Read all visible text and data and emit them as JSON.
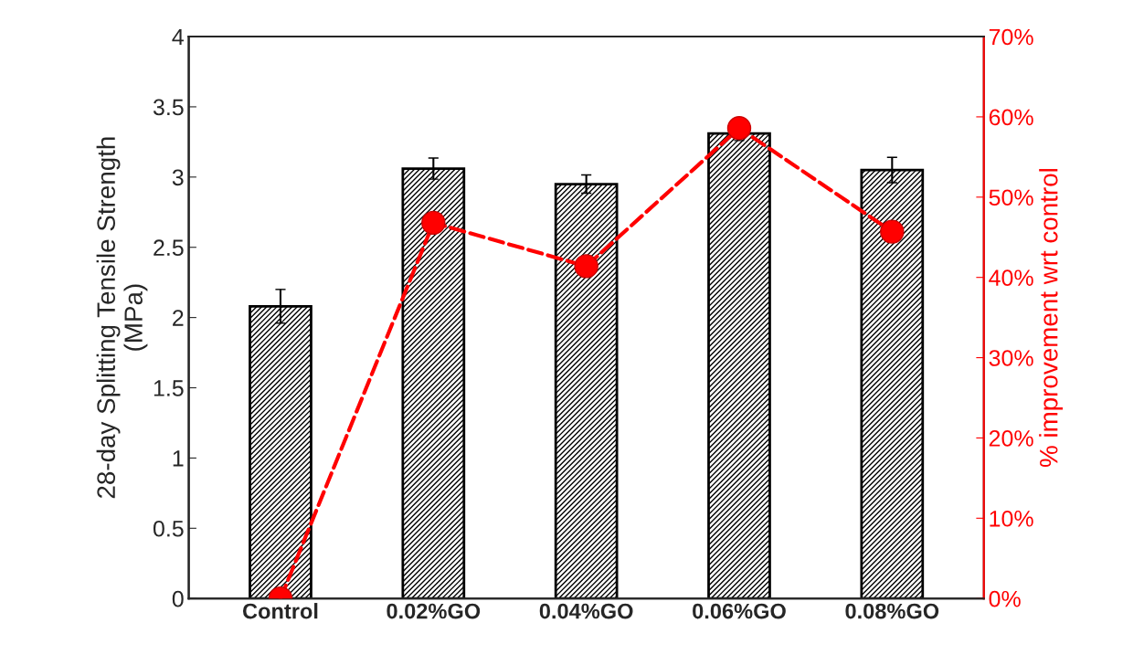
{
  "chart_data": {
    "type": "bar",
    "categories": [
      "Control",
      "0.02%GO",
      "0.04%GO",
      "0.06%GO",
      "0.08%GO"
    ],
    "ylabel": "28-day Splitting Tensile Strength\n(MPa)",
    "y2label": "% improvement wrt control",
    "ylim": [
      0,
      4
    ],
    "yticks": [
      0,
      0.5,
      1,
      1.5,
      2,
      2.5,
      3,
      3.5,
      4
    ],
    "y2lim": [
      0,
      70
    ],
    "y2ticks": [
      {
        "value": 0,
        "label": "0%"
      },
      {
        "value": 10,
        "label": "10%"
      },
      {
        "value": 20,
        "label": "20%"
      },
      {
        "value": 30,
        "label": "30%"
      },
      {
        "value": 40,
        "label": "40%"
      },
      {
        "value": 50,
        "label": "50%"
      },
      {
        "value": 60,
        "label": "60%"
      },
      {
        "value": 70,
        "label": "70%"
      }
    ],
    "grid": false,
    "legend": false,
    "series": [
      {
        "type": "bar",
        "color": "#000000",
        "values": [
          2.08,
          3.06,
          2.95,
          3.31,
          3.05
        ],
        "errors": [
          0.12,
          0.075,
          0.065,
          0.05,
          0.09
        ]
      },
      {
        "type": "line",
        "axis": "y2",
        "color": "#ff0000",
        "marker": "circle",
        "line_style": "dashed",
        "values": [
          0,
          46.8,
          41.4,
          58.6,
          45.7
        ]
      }
    ]
  }
}
